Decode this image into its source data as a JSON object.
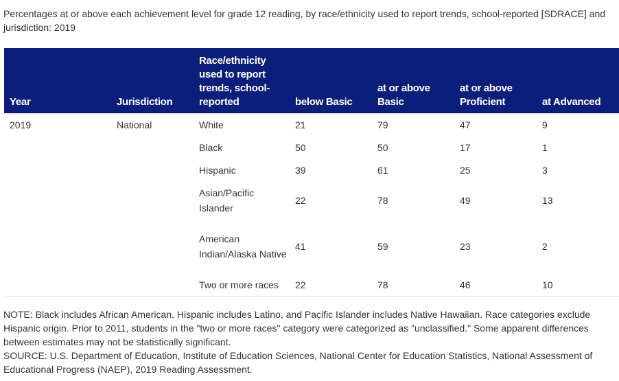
{
  "caption": "Percentages at or above each achievement level for grade 12 reading, by race/ethnicity used to report trends, school-reported [SDRACE] and jurisdiction: 2019",
  "table": {
    "headers": {
      "year": "Year",
      "jurisdiction": "Jurisdiction",
      "race": "Race/ethnicity used to report trends, school-reported",
      "below_basic": "below Basic",
      "at_or_above_basic": "at or above Basic",
      "at_or_above_proficient": "at or above Proficient",
      "at_advanced": "at Advanced"
    },
    "year": "2019",
    "jurisdiction": "National",
    "rows": [
      {
        "race": "White",
        "below_basic": "21",
        "basic": "79",
        "proficient": "47",
        "advanced": "9"
      },
      {
        "race": "Black",
        "below_basic": "50",
        "basic": "50",
        "proficient": "17",
        "advanced": "1"
      },
      {
        "race": "Hispanic",
        "below_basic": "39",
        "basic": "61",
        "proficient": "25",
        "advanced": "3"
      },
      {
        "race": "Asian/Pacific Islander",
        "below_basic": "22",
        "basic": "78",
        "proficient": "49",
        "advanced": "13"
      },
      {
        "race": "American Indian/Alaska Native",
        "below_basic": "41",
        "basic": "59",
        "proficient": "23",
        "advanced": "2"
      },
      {
        "race": "Two or more races",
        "below_basic": "22",
        "basic": "78",
        "proficient": "46",
        "advanced": "10"
      }
    ]
  },
  "notes": {
    "note": "NOTE: Black includes African American, Hispanic includes Latino, and Pacific Islander includes Native Hawaiian. Race categories exclude Hispanic origin. Prior to 2011, students in the \"two or more races\" category were categorized as \"unclassified.\" Some apparent differences between estimates may not be statistically significant.",
    "source": "SOURCE: U.S. Department of Education, Institute of Education Sciences, National Center for Education Statistics, National Assessment of Educational Progress (NAEP), 2019 Reading Assessment."
  }
}
